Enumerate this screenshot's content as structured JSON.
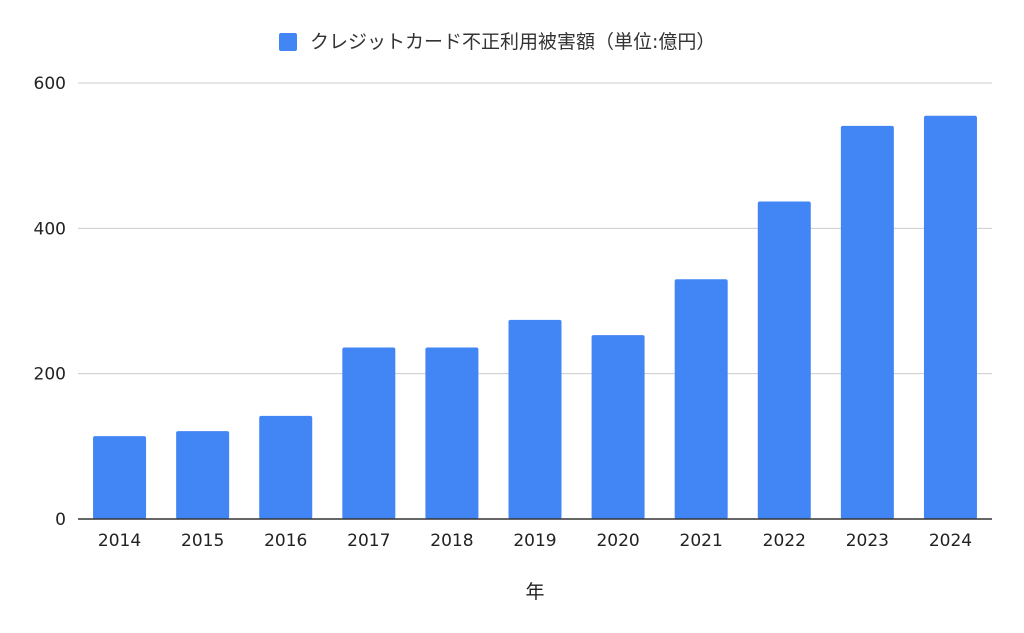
{
  "chart_data": {
    "type": "bar",
    "title": "",
    "xlabel": "年",
    "ylabel": "",
    "categories": [
      "2014",
      "2015",
      "2016",
      "2017",
      "2018",
      "2019",
      "2020",
      "2021",
      "2022",
      "2023",
      "2024"
    ],
    "series": [
      {
        "name": "クレジットカード不正利用被害額（単位:億円）",
        "color": "#4285f4",
        "values": [
          114,
          121,
          142,
          236,
          236,
          274,
          253,
          330,
          437,
          541,
          555
        ]
      }
    ],
    "ylim": [
      0,
      600
    ],
    "yticks": [
      0,
      200,
      400,
      600
    ],
    "grid": true,
    "legend_position": "top-center"
  }
}
